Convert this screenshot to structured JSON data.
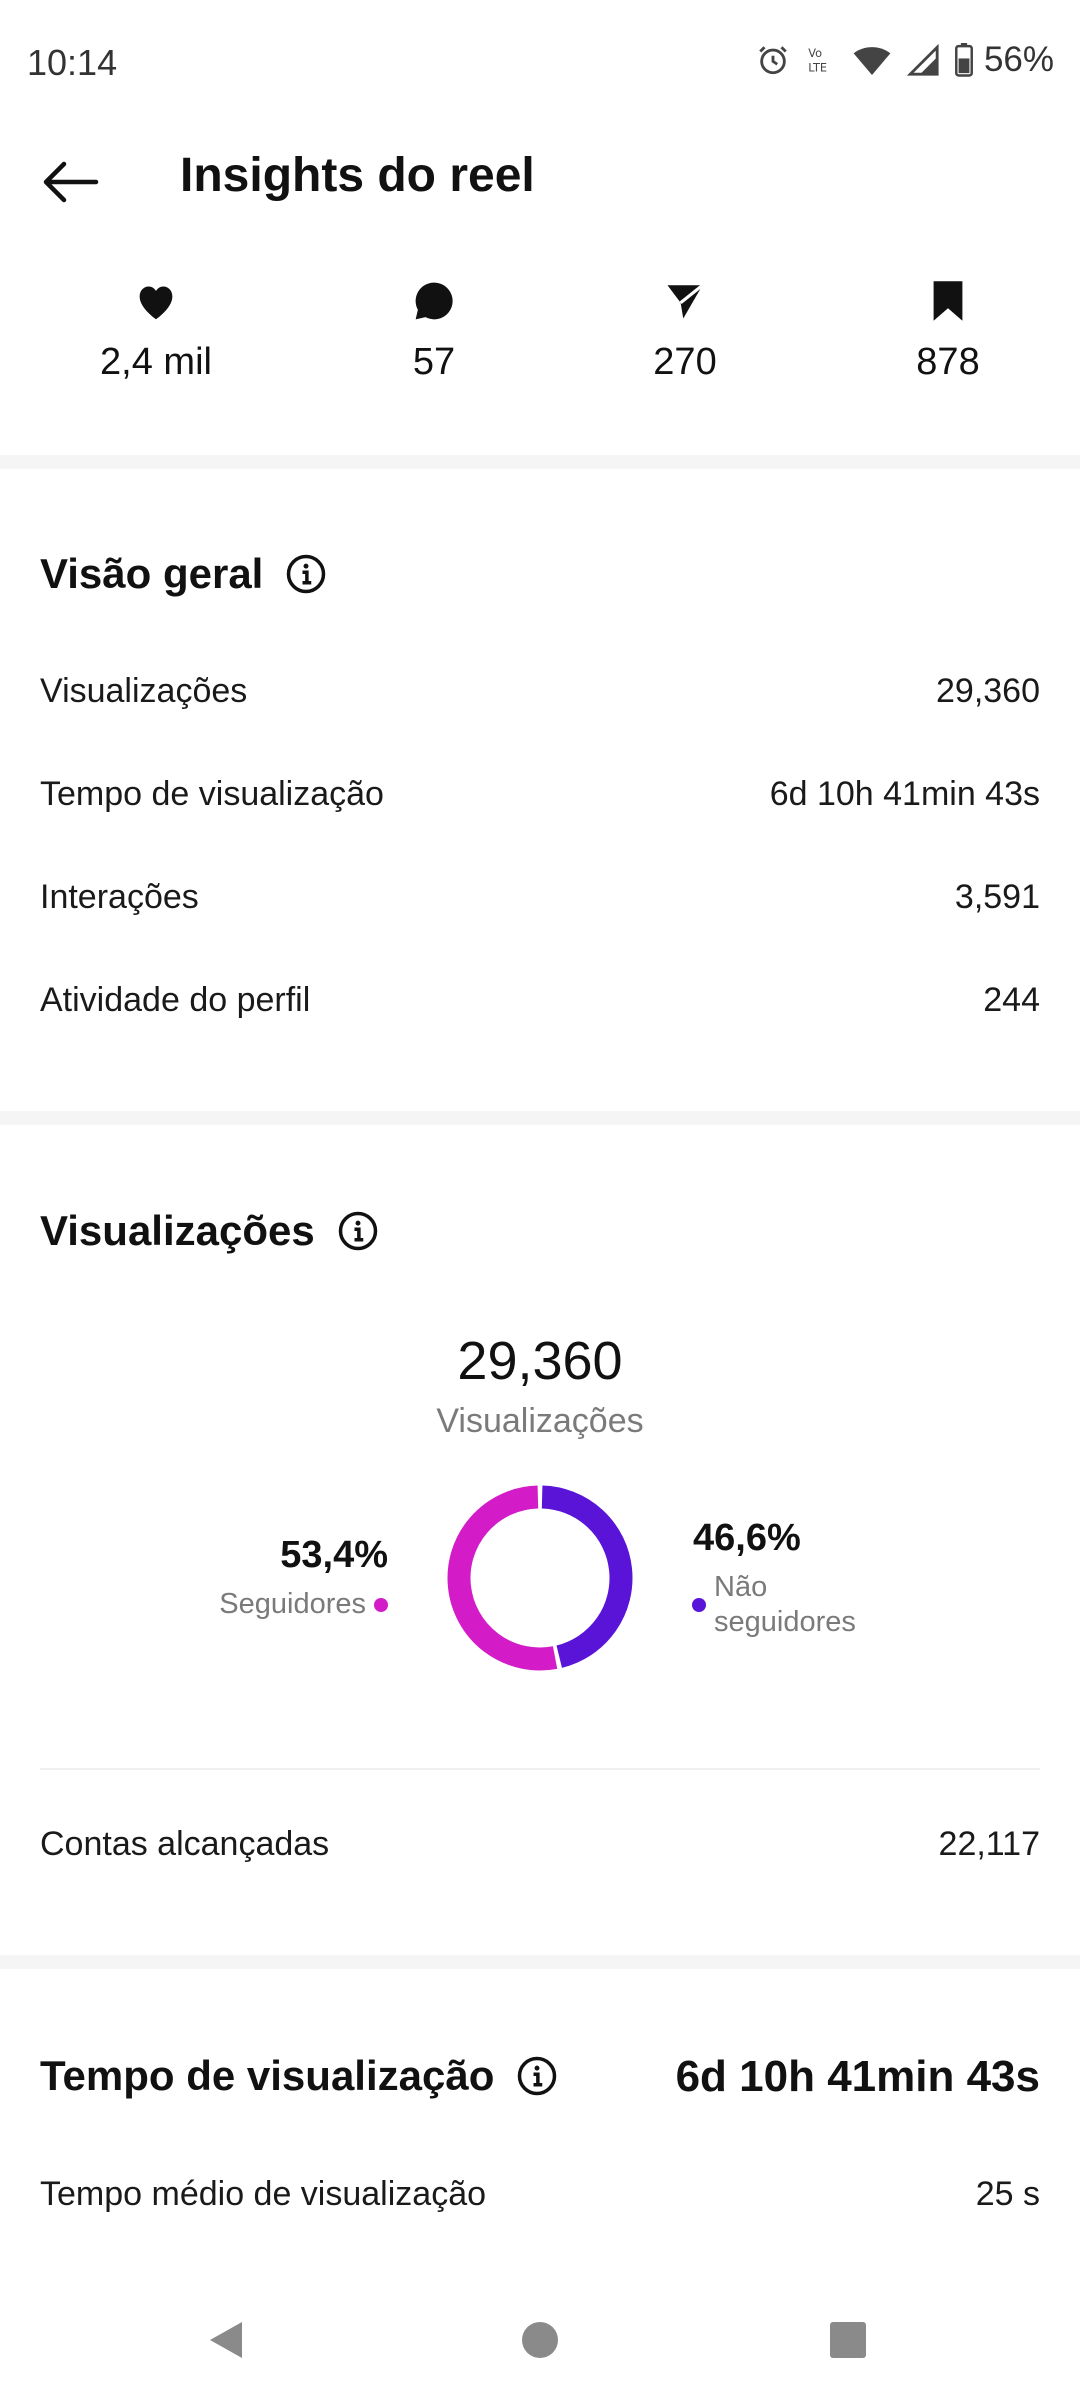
{
  "status_bar": {
    "time": "10:14",
    "battery": "56%",
    "icons": [
      "alarm-icon",
      "volte-icon",
      "wifi-icon",
      "signal-icon",
      "battery-icon"
    ]
  },
  "header": {
    "title": "Insights do reel",
    "back_icon": "arrow-left-icon"
  },
  "stats": [
    {
      "icon": "heart-icon",
      "value": "2,4 mil"
    },
    {
      "icon": "comment-icon",
      "value": "57"
    },
    {
      "icon": "share-icon",
      "value": "270"
    },
    {
      "icon": "bookmark-icon",
      "value": "878"
    }
  ],
  "overview": {
    "title": "Visão geral",
    "rows": [
      {
        "label": "Visualizações",
        "value": "29,360"
      },
      {
        "label": "Tempo de visualização",
        "value": "6d 10h 41min 43s"
      },
      {
        "label": "Interações",
        "value": "3,591"
      },
      {
        "label": "Atividade do perfil",
        "value": "244"
      }
    ]
  },
  "views": {
    "title": "Visualizações",
    "total": "29,360",
    "total_label": "Visualizações",
    "followers_pct": "53,4%",
    "followers_label": "Seguidores",
    "non_followers_pct": "46,6%",
    "non_followers_label_1": "Não",
    "non_followers_label_2": "seguidores",
    "accounts_reached_label": "Contas alcançadas",
    "accounts_reached_value": "22,117"
  },
  "chart_data": {
    "type": "pie",
    "categories": [
      "Seguidores",
      "Não seguidores"
    ],
    "values": [
      53.4,
      46.6
    ],
    "colors": [
      "#d31cc8",
      "#5a14d8"
    ]
  },
  "watch_time": {
    "title": "Tempo de visualização",
    "value": "6d 10h 41min 43s",
    "avg_label": "Tempo médio de visualização",
    "avg_value": "25 s"
  },
  "nav": [
    "back-triangle-icon",
    "home-circle-icon",
    "recents-square-icon"
  ]
}
